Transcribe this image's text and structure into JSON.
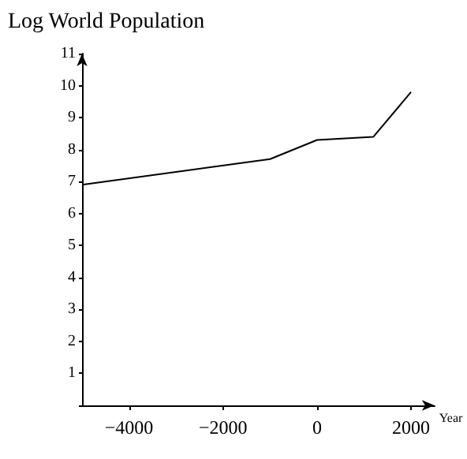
{
  "chart_data": {
    "type": "line",
    "title": "Log World Population",
    "xlabel": "Year",
    "x": [
      -5000,
      -3000,
      -1000,
      0,
      1200,
      2000
    ],
    "values": [
      6.9,
      7.3,
      7.7,
      8.3,
      8.4,
      9.8
    ],
    "color": "#000000",
    "xlim": [
      -5000,
      2500
    ],
    "xticks": [
      -4000,
      -2000,
      0,
      2000
    ],
    "ylim": [
      0,
      11
    ],
    "yticks": [
      1,
      2,
      3,
      4,
      5,
      6,
      7,
      8,
      9,
      10,
      11
    ],
    "grid": false,
    "marker": "none",
    "line_style": "solid"
  }
}
